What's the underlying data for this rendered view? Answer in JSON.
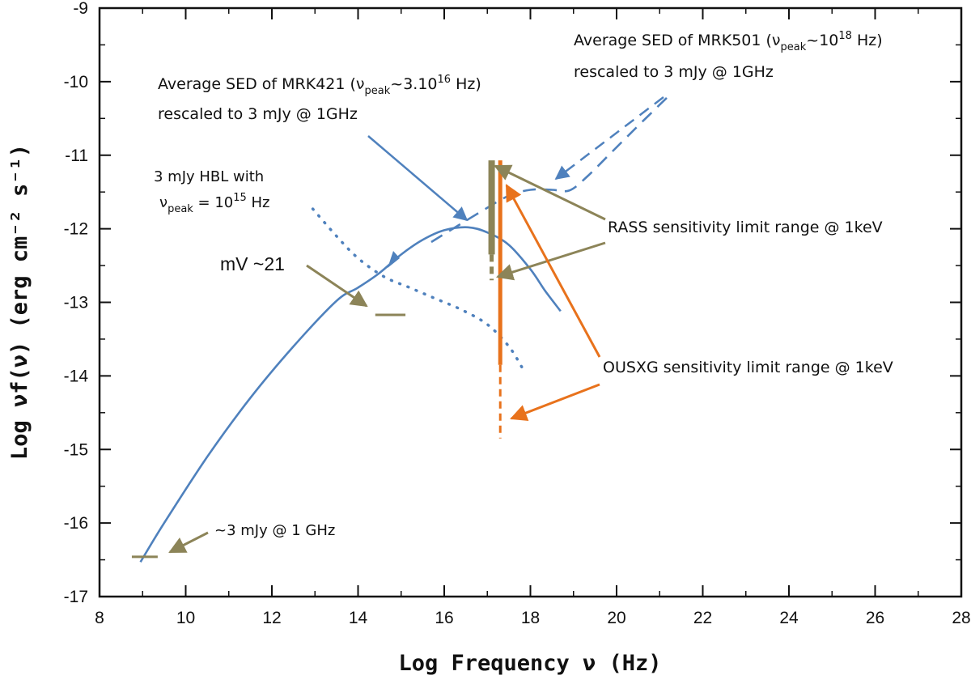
{
  "chart_data": {
    "type": "line",
    "xlabel": "Log Frequency ν (Hz)",
    "ylabel": "Log νf(ν) (erg cm⁻² s⁻¹)",
    "xlim": [
      8,
      28
    ],
    "ylim": [
      -17,
      -9
    ],
    "x_ticks": [
      8,
      10,
      12,
      14,
      16,
      18,
      20,
      22,
      24,
      26,
      28
    ],
    "x_tick_labels": [
      "8",
      "10",
      "12",
      "14",
      "16",
      "18",
      "20",
      "22",
      "24",
      "26",
      "28"
    ],
    "y_ticks": [
      -9,
      -10,
      -11,
      -12,
      -13,
      -14,
      -15,
      -16,
      -17
    ],
    "y_tick_labels": [
      "-9",
      "-10",
      "-11",
      "-12",
      "-13",
      "-14",
      "-15",
      "-16",
      "-17"
    ],
    "colors": {
      "blue": "#4f81bd",
      "olive": "#8c8458",
      "orange": "#e8721c"
    },
    "series": [
      {
        "style": "solid",
        "points": [
          [
            8.95,
            -16.53
          ],
          [
            9.5,
            -16.0
          ],
          [
            10.5,
            -15.1
          ],
          [
            11.5,
            -14.3
          ],
          [
            12.5,
            -13.6
          ],
          [
            13.5,
            -12.98
          ],
          [
            14.0,
            -12.8
          ],
          [
            14.5,
            -12.6
          ],
          [
            15.0,
            -12.35
          ],
          [
            15.5,
            -12.15
          ],
          [
            16.0,
            -12.02
          ],
          [
            16.55,
            -11.98
          ],
          [
            17.0,
            -12.05
          ],
          [
            17.5,
            -12.22
          ],
          [
            18.0,
            -12.55
          ],
          [
            18.35,
            -12.85
          ],
          [
            18.7,
            -13.12
          ]
        ]
      },
      {
        "style": "dashed",
        "points": [
          [
            15.7,
            -12.18
          ],
          [
            16.2,
            -12.0
          ],
          [
            16.9,
            -11.75
          ],
          [
            17.5,
            -11.55
          ],
          [
            18.0,
            -11.47
          ],
          [
            18.5,
            -11.47
          ],
          [
            18.9,
            -11.48
          ],
          [
            19.3,
            -11.3
          ],
          [
            19.9,
            -10.95
          ],
          [
            20.5,
            -10.6
          ],
          [
            21.2,
            -10.2
          ]
        ]
      },
      {
        "style": "dotted",
        "points": [
          [
            12.95,
            -11.73
          ],
          [
            13.5,
            -12.1
          ],
          [
            14.0,
            -12.4
          ],
          [
            14.6,
            -12.65
          ],
          [
            15.2,
            -12.8
          ],
          [
            15.8,
            -12.95
          ],
          [
            16.4,
            -13.1
          ],
          [
            17.0,
            -13.3
          ],
          [
            17.5,
            -13.6
          ],
          [
            17.8,
            -13.88
          ]
        ]
      }
    ],
    "sensitivity_bars": [
      {
        "color": "olive",
        "x": 17.1,
        "y_solid": [
          -11.07,
          -12.35
        ],
        "y_dashed": [
          -12.35,
          -12.7
        ]
      },
      {
        "color": "orange",
        "x": 17.3,
        "y_solid": [
          -11.07,
          -13.85
        ],
        "y_dashed": [
          -13.85,
          -14.85
        ]
      }
    ],
    "marks": [
      {
        "color": "olive",
        "x": [
          14.4,
          15.1
        ],
        "y": -13.17
      },
      {
        "color": "olive",
        "x": [
          8.75,
          9.35
        ],
        "y": -16.46
      }
    ],
    "annotations": {
      "mrk421_line1": "Average SED of MRK421 (ν",
      "mrk421_sub": "peak",
      "mrk421_mid": "~3.10",
      "mrk421_sup": "16",
      "mrk421_end": " Hz)",
      "mrk421_line2": "rescaled to 3 mJy @ 1GHz",
      "mrk501_line1": "Average SED of MRK501 (ν",
      "mrk501_sub": "peak",
      "mrk501_mid": "~10",
      "mrk501_sup": "18",
      "mrk501_end": " Hz)",
      "mrk501_line2": "rescaled to 3 mJy @ 1GHz",
      "hbl_line1": "3 mJy  HBL with",
      "hbl_nu": "ν",
      "hbl_sub": "peak",
      "hbl_mid": " = 10",
      "hbl_sup": "15",
      "hbl_end": " Hz",
      "mv": "mV ~21",
      "rass": "RASS sensitivity limit range @ 1keV",
      "ousxg": "OUSXG sensitivity limit range @ 1keV",
      "radio": "~3 mJy @ 1 GHz"
    }
  }
}
